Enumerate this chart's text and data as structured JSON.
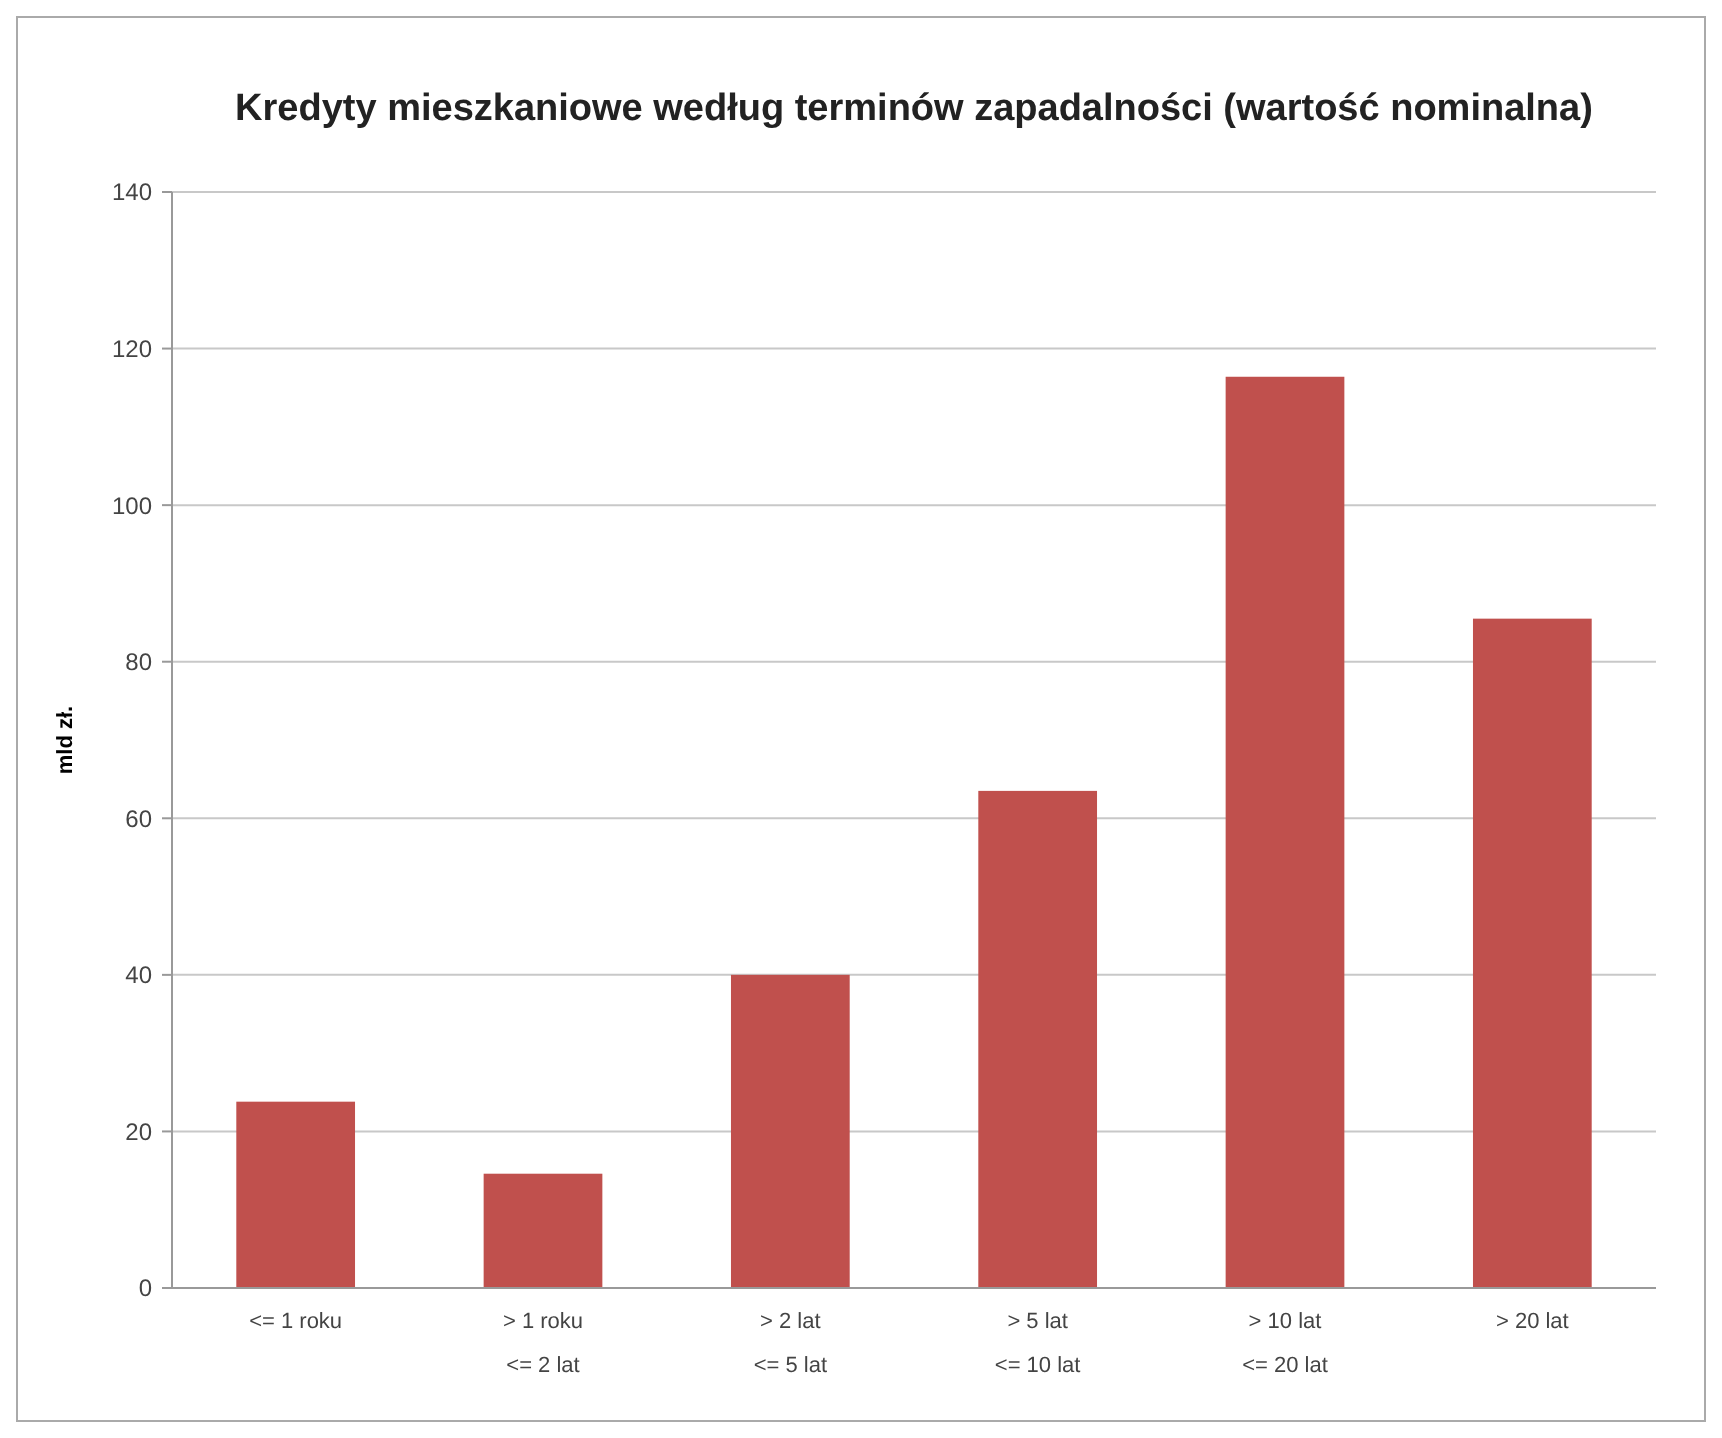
{
  "chart_data": {
    "type": "bar",
    "title": "Kredyty mieszkaniowe według terminów zapadalności (wartość nominalna)",
    "ylabel": "mld zł.",
    "categories": [
      "<= 1 roku",
      "> 1 roku\n<= 2 lat",
      "> 2 lat\n<= 5 lat",
      "> 5 lat\n<= 10 lat",
      "> 10 lat\n<= 20 lat",
      "> 20 lat"
    ],
    "values": [
      23.8,
      14.6,
      40,
      63.5,
      116.4,
      85.5
    ],
    "color": "#c0504d",
    "ylim": [
      0,
      140
    ],
    "yticks": [
      0,
      20,
      40,
      60,
      80,
      100,
      120,
      140
    ],
    "grid": "y"
  }
}
